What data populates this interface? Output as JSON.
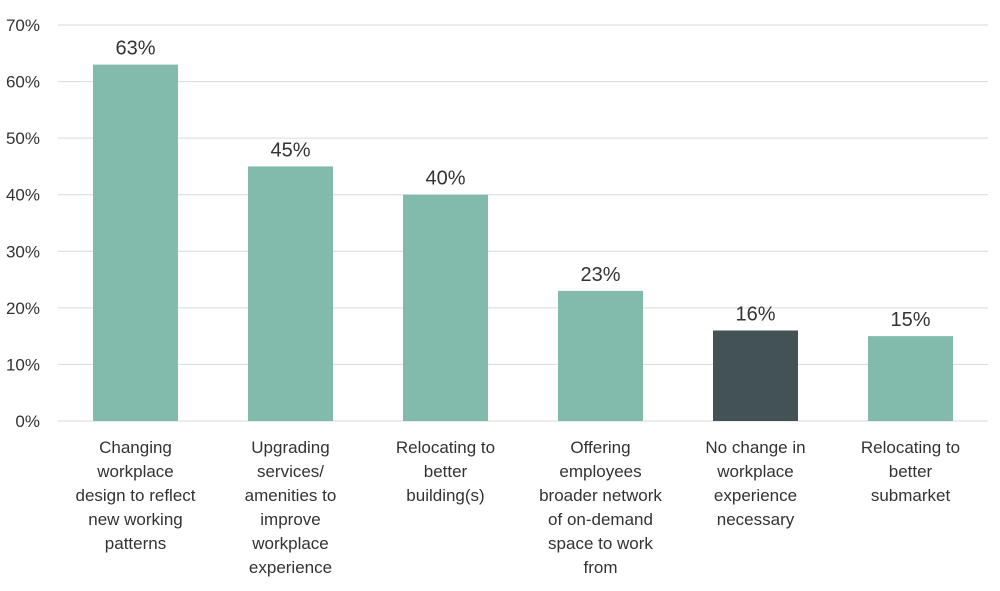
{
  "chart_data": {
    "type": "bar",
    "title": "",
    "xlabel": "",
    "ylabel": "",
    "ylim": [
      0,
      70
    ],
    "yticks": [
      0,
      10,
      20,
      30,
      40,
      50,
      60,
      70
    ],
    "ytick_labels": [
      "0%",
      "10%",
      "20%",
      "30%",
      "40%",
      "50%",
      "60%",
      "70%"
    ],
    "grid": true,
    "categories": [
      [
        "Changing",
        "workplace",
        "design to reflect",
        "new working",
        "patterns"
      ],
      [
        "Upgrading",
        "services/",
        "amenities to",
        "improve",
        "workplace",
        "experience"
      ],
      [
        "Relocating to",
        "better",
        "building(s)"
      ],
      [
        "Offering",
        "employees",
        "broader network",
        "of on-demand",
        "space to work",
        "from"
      ],
      [
        "No change in",
        "workplace",
        "experience",
        "necessary"
      ],
      [
        "Relocating to",
        "better",
        "submarket"
      ]
    ],
    "values": [
      63,
      45,
      40,
      23,
      16,
      15
    ],
    "value_labels": [
      "63%",
      "45%",
      "40%",
      "23%",
      "16%",
      "15%"
    ],
    "colors": [
      "#82bbab",
      "#82bbab",
      "#82bbab",
      "#82bbab",
      "#425255",
      "#82bbab"
    ]
  }
}
